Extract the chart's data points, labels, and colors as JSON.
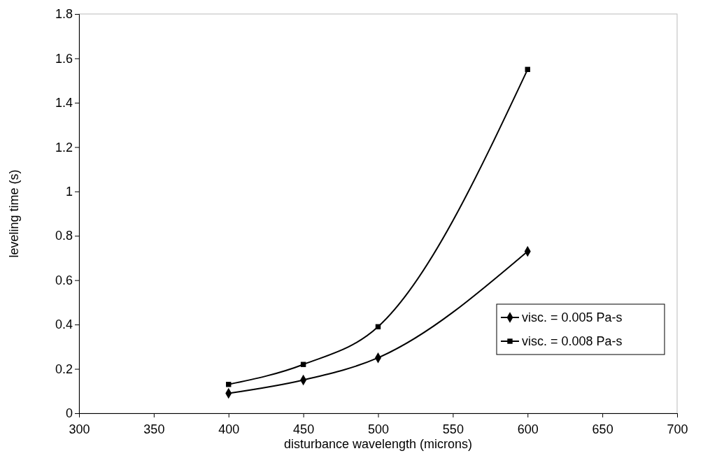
{
  "chart_data": {
    "type": "line",
    "xlabel": "disturbance wavelength (microns)",
    "ylabel": "leveling time (s)",
    "xlim": [
      300,
      700
    ],
    "xticks": [
      300,
      350,
      400,
      450,
      500,
      550,
      600,
      650,
      700
    ],
    "ylim": [
      0,
      1.8
    ],
    "yticks": [
      0,
      0.2,
      0.4,
      0.6,
      0.8,
      1,
      1.2,
      1.4,
      1.6,
      1.8
    ],
    "x": [
      400,
      450,
      500,
      600
    ],
    "legend": "bottom right",
    "grid": false,
    "line_style": "solid",
    "series": [
      {
        "name": "visc. = 0.005 Pa-s",
        "color": "#000000",
        "marker": "diamond",
        "values": [
          0.09,
          0.15,
          0.25,
          0.73
        ]
      },
      {
        "name": "visc. = 0.008 Pa-s",
        "color": "#000000",
        "marker": "square",
        "values": [
          0.13,
          0.22,
          0.39,
          1.55
        ]
      }
    ]
  }
}
